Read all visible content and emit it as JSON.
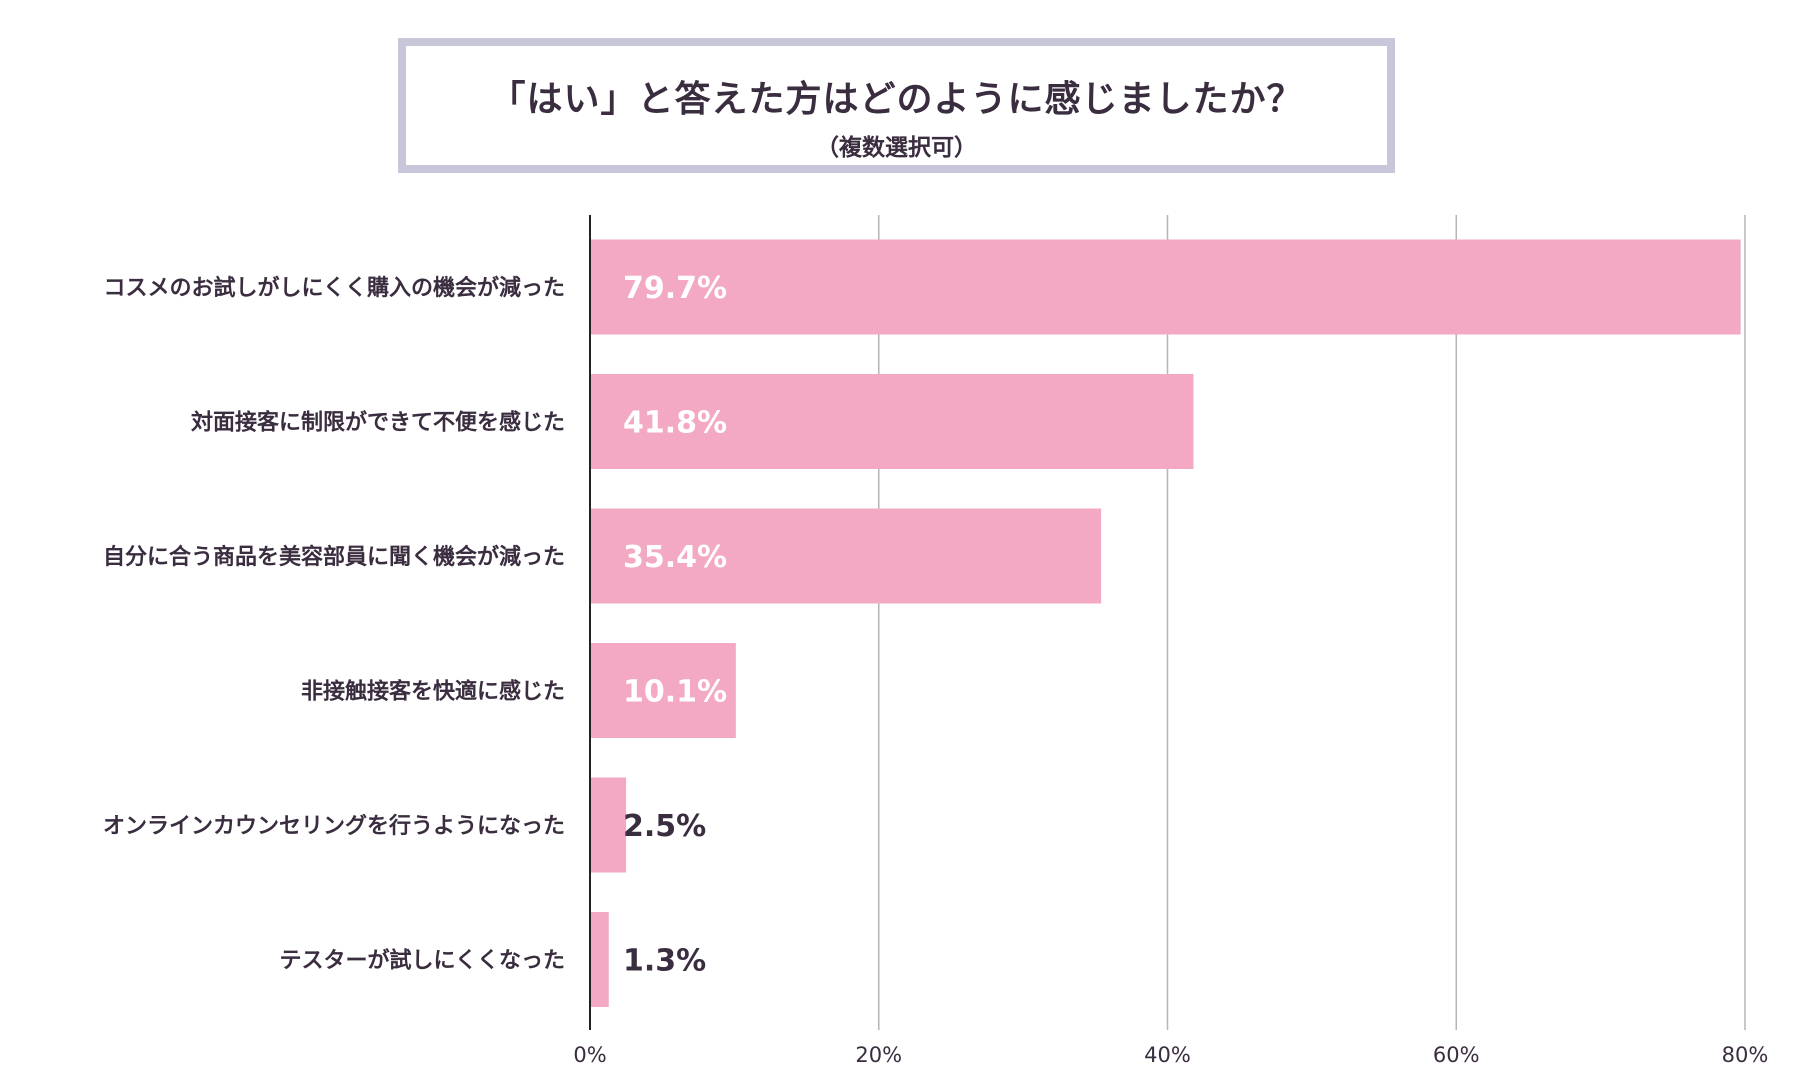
{
  "header": {
    "title": "「はい」と答えた方はどのように感じましたか？",
    "subtitle": "（複数選択可）"
  },
  "colors": {
    "bar": "#f3a9c4",
    "text_dark": "#3a2d3f",
    "value_inside": "#ffffff",
    "grid": "#b5b5b5",
    "axis": "#222222",
    "title_border": "#c8c6d9"
  },
  "chart_data": {
    "type": "bar",
    "orientation": "horizontal",
    "categories": [
      "コスメのお試しがしにくく購入の機会が減った",
      "対面接客に制限ができて不便を感じた",
      "自分に合う商品を美容部員に聞く機会が減った",
      "非接触接客を快適に感じた",
      "オンラインカウンセリングを行うようになった",
      "テスターが試しにくくなった"
    ],
    "values": [
      79.7,
      41.8,
      35.4,
      10.1,
      2.5,
      1.3
    ],
    "value_labels": [
      "79.7%",
      "41.8%",
      "35.4%",
      "10.1%",
      "2.5%",
      "1.3%"
    ],
    "xlim": [
      0,
      80
    ],
    "ticks": [
      0,
      20,
      40,
      60,
      80
    ],
    "tick_labels": [
      "0%",
      "20%",
      "40%",
      "60%",
      "80%"
    ],
    "grid": true,
    "legend": "none"
  }
}
